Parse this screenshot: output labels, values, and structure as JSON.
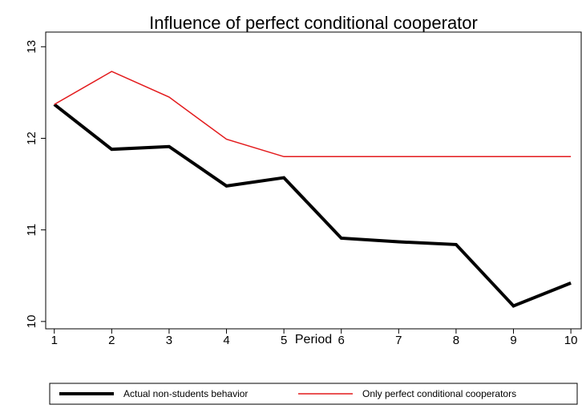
{
  "chart_data": {
    "type": "line",
    "title": "Influence of perfect conditional cooperator",
    "x_label": "Period",
    "x": [
      1,
      2,
      3,
      4,
      5,
      6,
      7,
      8,
      9,
      10
    ],
    "series": [
      {
        "name": "Actual non-students behavior",
        "color": "#000000",
        "width": 4,
        "values": [
          12.37,
          11.88,
          11.91,
          11.48,
          11.57,
          10.91,
          10.87,
          10.84,
          10.17,
          10.42
        ]
      },
      {
        "name": "Only perfect conditional cooperators",
        "color": "#e31a1c",
        "width": 1.5,
        "values": [
          12.37,
          12.73,
          12.45,
          11.99,
          11.8,
          11.8,
          11.8,
          11.8,
          11.8,
          11.8
        ]
      }
    ],
    "xlim": [
      0.85,
      10.18
    ],
    "xticks": [
      1,
      2,
      3,
      4,
      5,
      6,
      7,
      8,
      9,
      10
    ],
    "ylim": [
      9.92,
      13.16
    ],
    "yticks": [
      10,
      11,
      12,
      13
    ],
    "legend": "bottom"
  }
}
